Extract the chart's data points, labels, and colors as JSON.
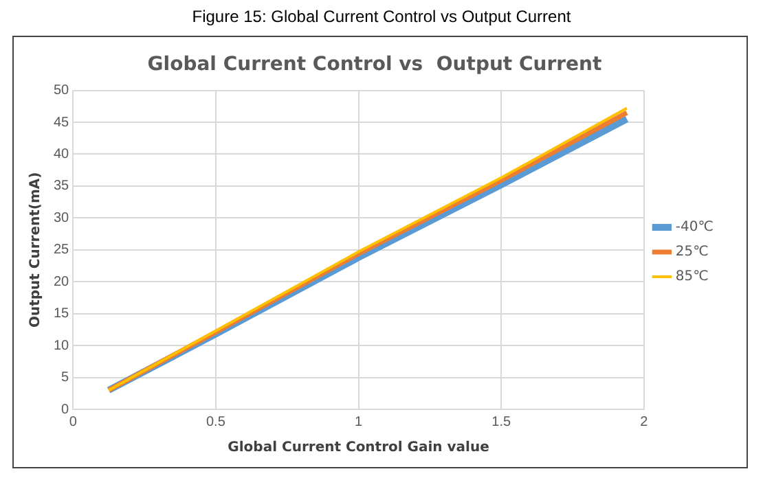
{
  "chart_data": {
    "type": "line",
    "title": "Global Current Control vs  Output Current",
    "xlabel": "Global Current Control Gain value",
    "ylabel": "Output Current(mA)",
    "annotations": [
      "Figure 15: Global Current Control vs Output Current"
    ],
    "x": [
      0.125,
      0.5,
      1,
      1.5,
      1.94
    ],
    "series": [
      {
        "name": "-40℃",
        "color": "#5b9bd5",
        "values": [
          3,
          11.8,
          23.8,
          35.2,
          45.5
        ]
      },
      {
        "name": "25℃",
        "color": "#ed7d31",
        "values": [
          3,
          12.1,
          24.4,
          35.9,
          46.5
        ]
      },
      {
        "name": "85℃",
        "color": "#ffc000",
        "values": [
          3,
          12.3,
          24.7,
          36.3,
          47.2
        ]
      }
    ],
    "xlim": [
      0,
      2
    ],
    "xticks": [
      0,
      0.5,
      1,
      1.5,
      2
    ],
    "ylim": [
      0,
      50
    ],
    "yticks": [
      0,
      5,
      10,
      15,
      20,
      25,
      30,
      35,
      40,
      45,
      50
    ],
    "grid": true,
    "legend": "right",
    "marker": "none",
    "line_style": "solid"
  }
}
